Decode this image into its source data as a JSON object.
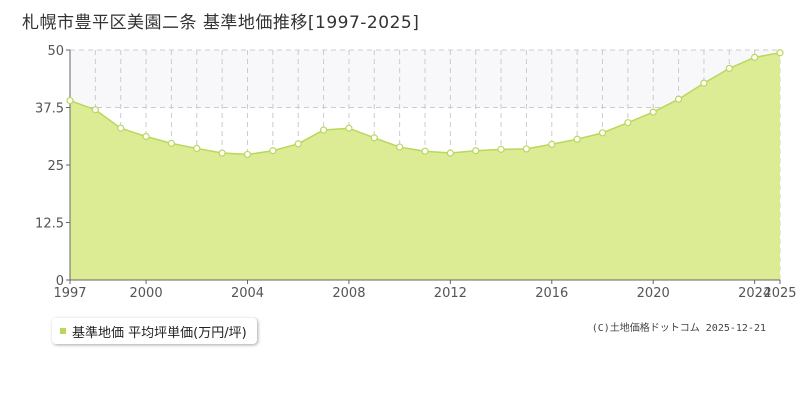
{
  "title": "札幌市豊平区美園二条 基準地価推移[1997-2025]",
  "legend": {
    "label": "基準地価 平均坪単価(万円/坪)"
  },
  "copyright": "(C)土地価格ドットコム 2025-12-21",
  "colors": {
    "area_fill": "#dcec94",
    "line": "#b8d85c",
    "marker_fill": "#ffffff",
    "grid": "#cccccc",
    "upper_band": "#f8f8fa"
  },
  "chart_data": {
    "type": "area",
    "title": "札幌市豊平区美園二条 基準地価推移[1997-2025]",
    "xlabel": "",
    "ylabel": "",
    "xlim": [
      1997,
      2025
    ],
    "ylim": [
      0,
      50
    ],
    "yticks": [
      "0",
      "12.5",
      "25",
      "37.5",
      "50"
    ],
    "xticks": [
      "1997",
      "2000",
      "2004",
      "2008",
      "2012",
      "2016",
      "2020",
      "2024",
      "2025"
    ],
    "grid": true,
    "legend_position": "bottom-left",
    "series": [
      {
        "name": "基準地価 平均坪単価(万円/坪)",
        "x": [
          1997,
          1998,
          1999,
          2000,
          2001,
          2002,
          2003,
          2004,
          2005,
          2006,
          2007,
          2008,
          2009,
          2010,
          2011,
          2012,
          2013,
          2014,
          2015,
          2016,
          2017,
          2018,
          2019,
          2020,
          2021,
          2022,
          2023,
          2024,
          2025
        ],
        "values": [
          39.0,
          37.0,
          33.0,
          31.2,
          29.7,
          28.6,
          27.6,
          27.3,
          28.1,
          29.6,
          32.6,
          33.0,
          30.9,
          28.9,
          28.0,
          27.6,
          28.1,
          28.4,
          28.5,
          29.5,
          30.6,
          32.0,
          34.2,
          36.5,
          39.3,
          42.8,
          46.0,
          48.4,
          49.4
        ]
      }
    ]
  }
}
